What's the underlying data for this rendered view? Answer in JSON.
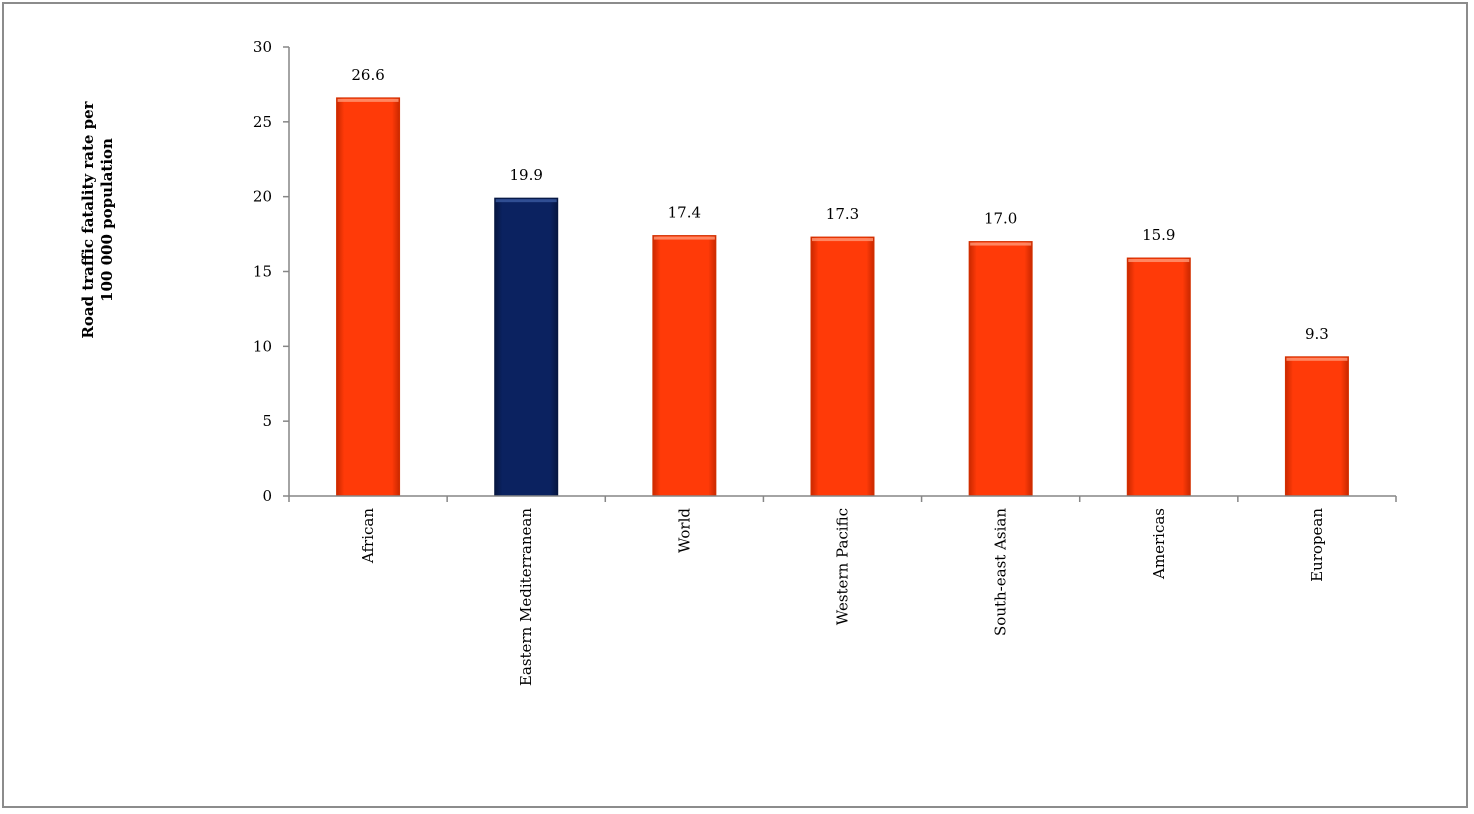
{
  "chart_data": {
    "type": "bar",
    "title": "",
    "xlabel": "",
    "ylabel": [
      "Road traffic fatality rate per",
      "100 000 population"
    ],
    "ylim": [
      0,
      30
    ],
    "yticks": [
      0,
      5,
      10,
      15,
      20,
      25,
      30
    ],
    "grid": false,
    "legend": "none",
    "categories": [
      "African",
      "Eastern Mediterranean",
      "World",
      "Western Pacific",
      "South-east Asian",
      "Americas",
      "European"
    ],
    "values": [
      26.6,
      19.9,
      17.4,
      17.3,
      17.0,
      15.9,
      9.3
    ],
    "value_labels": [
      "26.6",
      "19.9",
      "17.4",
      "17.3",
      "17.0",
      "15.9",
      "9.3"
    ],
    "highlight_category": "Eastern Mediterranean",
    "colors": {
      "bar": "#ff3a08",
      "bar_highlight": "#0b2260",
      "axis": "#868686",
      "frame": "#8c8c8c"
    }
  }
}
